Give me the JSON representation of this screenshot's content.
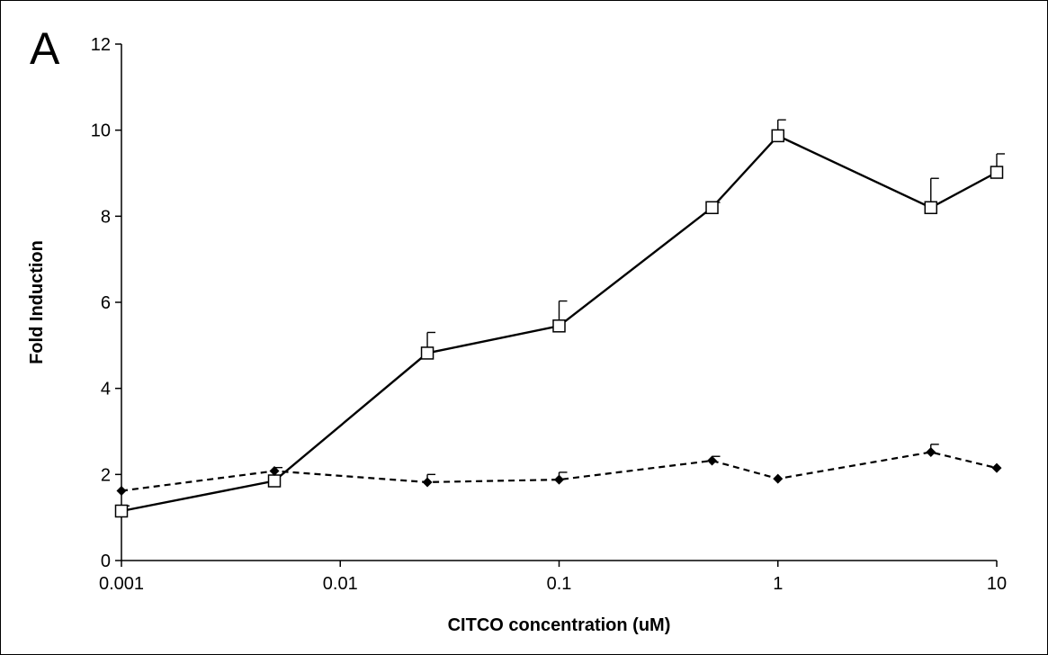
{
  "panel_label": "A",
  "chart_data": {
    "type": "line",
    "xlabel": "CITCO concentration (uM)",
    "ylabel": "Fold Induction",
    "xscale": "log",
    "xlim": [
      0.001,
      10
    ],
    "ylim": [
      0,
      12
    ],
    "x_ticks": [
      0.001,
      0.01,
      0.1,
      1,
      10
    ],
    "x_tick_labels": [
      "0.001",
      "0.01",
      "0.1",
      "1",
      "10"
    ],
    "y_ticks": [
      0,
      2,
      4,
      6,
      8,
      10,
      12
    ],
    "y_tick_labels": [
      "0",
      "2",
      "4",
      "6",
      "8",
      "10",
      "12"
    ],
    "grid": false,
    "legend": "none",
    "x": [
      0.001,
      0.005,
      0.025,
      0.1,
      0.5,
      1,
      5,
      10
    ],
    "series": [
      {
        "line_style": "solid",
        "marker": "open-square",
        "color": "#000000",
        "values": [
          1.15,
          1.85,
          4.82,
          5.45,
          8.2,
          9.87,
          8.2,
          9.02
        ],
        "error": [
          0.12,
          0.0,
          0.48,
          0.58,
          0.12,
          0.37,
          0.68,
          0.43
        ]
      },
      {
        "line_style": "dashed",
        "marker": "filled-diamond",
        "color": "#000000",
        "values": [
          1.62,
          2.08,
          1.82,
          1.88,
          2.32,
          1.9,
          2.52,
          2.15
        ],
        "error": [
          0.0,
          0.08,
          0.18,
          0.17,
          0.1,
          0.0,
          0.18,
          0.0
        ]
      }
    ]
  }
}
